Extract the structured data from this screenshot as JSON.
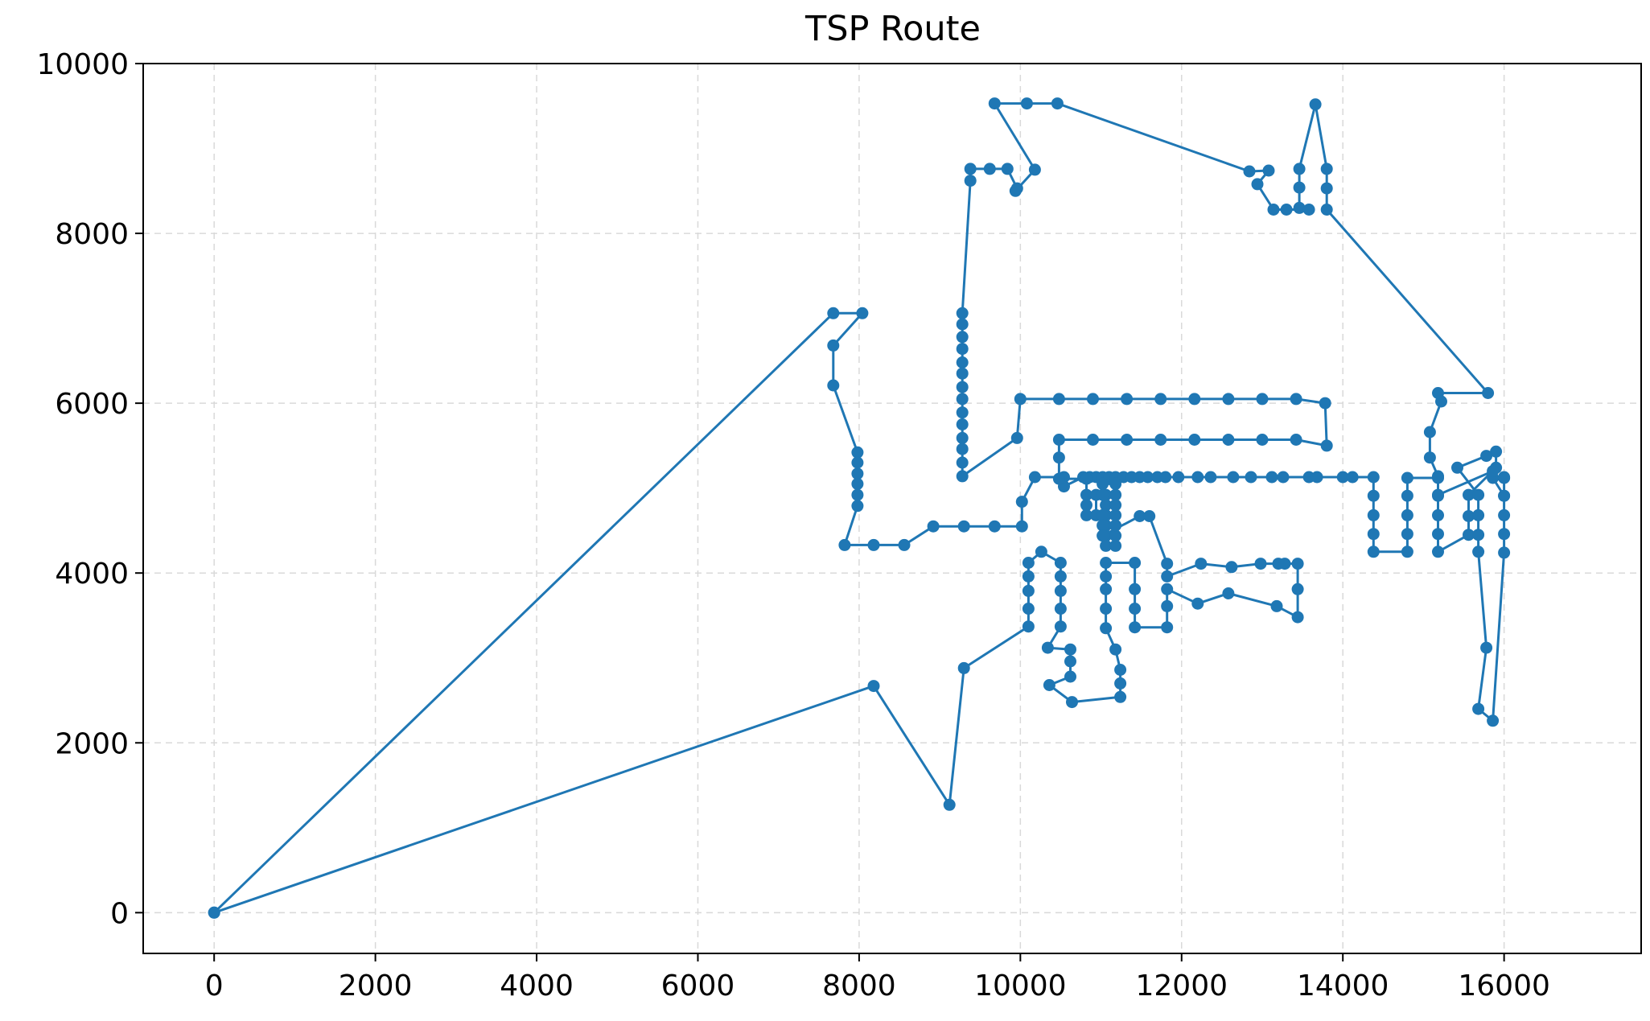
{
  "chart_data": {
    "type": "line",
    "title": "TSP Route",
    "xlabel": "",
    "ylabel": "",
    "xlim": [
      -880,
      17700
    ],
    "ylim": [
      -480,
      10000
    ],
    "xticks": [
      0,
      2000,
      4000,
      6000,
      8000,
      10000,
      12000,
      14000,
      16000
    ],
    "yticks": [
      0,
      2000,
      4000,
      6000,
      8000,
      10000
    ],
    "grid": true,
    "markers": true,
    "colors": {
      "line": "#1f77b4",
      "grid": "#d9d9d9",
      "axis": "#000000"
    },
    "series": [
      {
        "points": [
          [
            0,
            0
          ],
          [
            7680,
            7060
          ],
          [
            8040,
            7060
          ],
          [
            7680,
            6680
          ],
          [
            7680,
            6210
          ],
          [
            7980,
            5420
          ],
          [
            7980,
            5300
          ],
          [
            7980,
            5170
          ],
          [
            7980,
            5050
          ],
          [
            7980,
            4920
          ],
          [
            7980,
            4790
          ],
          [
            7820,
            4330
          ],
          [
            8180,
            4330
          ],
          [
            8560,
            4330
          ],
          [
            8920,
            4550
          ],
          [
            9300,
            4550
          ],
          [
            9680,
            4550
          ],
          [
            10020,
            4550
          ],
          [
            10020,
            4840
          ],
          [
            10180,
            5130
          ],
          [
            10540,
            5130
          ],
          [
            10540,
            5020
          ],
          [
            10780,
            5130
          ],
          [
            10860,
            5130
          ],
          [
            10940,
            5130
          ],
          [
            11020,
            5130
          ],
          [
            11100,
            5130
          ],
          [
            11180,
            5130
          ],
          [
            11280,
            5130
          ],
          [
            11380,
            5130
          ],
          [
            11480,
            5130
          ],
          [
            11580,
            5130
          ],
          [
            11700,
            5130
          ],
          [
            11800,
            5130
          ],
          [
            11960,
            5130
          ],
          [
            12200,
            5130
          ],
          [
            12360,
            5130
          ],
          [
            12640,
            5130
          ],
          [
            12860,
            5130
          ],
          [
            13120,
            5130
          ],
          [
            13260,
            5130
          ],
          [
            13580,
            5130
          ],
          [
            13680,
            5130
          ],
          [
            14000,
            5130
          ],
          [
            14120,
            5130
          ],
          [
            14380,
            5130
          ],
          [
            14380,
            4910
          ],
          [
            14380,
            4680
          ],
          [
            14380,
            4460
          ],
          [
            14380,
            4250
          ],
          [
            14800,
            4250
          ],
          [
            14800,
            4460
          ],
          [
            14800,
            4680
          ],
          [
            14800,
            4910
          ],
          [
            14800,
            5120
          ],
          [
            15180,
            5120
          ],
          [
            15180,
            4910
          ],
          [
            15180,
            4680
          ],
          [
            15180,
            4460
          ],
          [
            15180,
            4250
          ],
          [
            15560,
            4450
          ],
          [
            15560,
            4670
          ],
          [
            15560,
            4920
          ],
          [
            15900,
            5240
          ],
          [
            15900,
            5430
          ],
          [
            15780,
            5380
          ],
          [
            15420,
            5240
          ],
          [
            15680,
            4920
          ],
          [
            15680,
            4680
          ],
          [
            15680,
            4450
          ],
          [
            15680,
            4250
          ],
          [
            15780,
            3120
          ],
          [
            15680,
            2400
          ],
          [
            15860,
            2260
          ],
          [
            16000,
            4240
          ],
          [
            16000,
            4460
          ],
          [
            16000,
            4680
          ],
          [
            16000,
            4910
          ],
          [
            16000,
            5120
          ],
          [
            16000,
            5130
          ],
          [
            16000,
            5120
          ],
          [
            16000,
            4910
          ],
          [
            15860,
            5120
          ],
          [
            15860,
            5200
          ],
          [
            15180,
            4920
          ],
          [
            15180,
            5140
          ],
          [
            15080,
            5360
          ],
          [
            15080,
            5660
          ],
          [
            15220,
            6020
          ],
          [
            15180,
            6120
          ],
          [
            15800,
            6120
          ],
          [
            13800,
            8280
          ],
          [
            13800,
            8530
          ],
          [
            13800,
            8760
          ],
          [
            13660,
            9520
          ],
          [
            13460,
            8760
          ],
          [
            13460,
            8540
          ],
          [
            13460,
            8300
          ],
          [
            13580,
            8280
          ],
          [
            13300,
            8280
          ],
          [
            13140,
            8280
          ],
          [
            12940,
            8580
          ],
          [
            13080,
            8740
          ],
          [
            12840,
            8730
          ],
          [
            10460,
            9530
          ],
          [
            10080,
            9530
          ],
          [
            9680,
            9530
          ],
          [
            10180,
            8750
          ],
          [
            9940,
            8500
          ],
          [
            9960,
            8530
          ],
          [
            9840,
            8760
          ],
          [
            9620,
            8760
          ],
          [
            9380,
            8760
          ],
          [
            9380,
            8620
          ],
          [
            9280,
            7060
          ],
          [
            9280,
            6930
          ],
          [
            9280,
            6780
          ],
          [
            9280,
            6640
          ],
          [
            9280,
            6480
          ],
          [
            9280,
            6350
          ],
          [
            9280,
            6190
          ],
          [
            9280,
            6050
          ],
          [
            9280,
            5890
          ],
          [
            9280,
            5750
          ],
          [
            9280,
            5590
          ],
          [
            9280,
            5460
          ],
          [
            9280,
            5300
          ],
          [
            9280,
            5140
          ],
          [
            9960,
            5590
          ],
          [
            10000,
            6050
          ],
          [
            10480,
            6050
          ],
          [
            10900,
            6050
          ],
          [
            11320,
            6050
          ],
          [
            11740,
            6050
          ],
          [
            12160,
            6050
          ],
          [
            12580,
            6050
          ],
          [
            13000,
            6050
          ],
          [
            13420,
            6050
          ],
          [
            13780,
            6000
          ],
          [
            13800,
            5500
          ],
          [
            13420,
            5570
          ],
          [
            13000,
            5570
          ],
          [
            12580,
            5570
          ],
          [
            12160,
            5570
          ],
          [
            11740,
            5570
          ],
          [
            11320,
            5570
          ],
          [
            10900,
            5570
          ],
          [
            10480,
            5570
          ],
          [
            10480,
            5360
          ],
          [
            10480,
            5110
          ],
          [
            10820,
            5110
          ],
          [
            10820,
            4920
          ],
          [
            10820,
            4800
          ],
          [
            10820,
            4680
          ],
          [
            10940,
            4680
          ],
          [
            10940,
            4920
          ],
          [
            11060,
            4920
          ],
          [
            11060,
            4800
          ],
          [
            11060,
            4680
          ],
          [
            11060,
            4560
          ],
          [
            11060,
            4440
          ],
          [
            11060,
            4320
          ],
          [
            11180,
            4320
          ],
          [
            11180,
            4440
          ],
          [
            11180,
            4560
          ],
          [
            11180,
            4680
          ],
          [
            11180,
            4800
          ],
          [
            11180,
            4920
          ],
          [
            11180,
            5050
          ],
          [
            11020,
            5050
          ],
          [
            11020,
            4920
          ],
          [
            11020,
            4680
          ],
          [
            11020,
            4560
          ],
          [
            11020,
            4440
          ],
          [
            11480,
            4670
          ],
          [
            11600,
            4670
          ],
          [
            11820,
            4110
          ],
          [
            11820,
            3960
          ],
          [
            12240,
            4110
          ],
          [
            12620,
            4070
          ],
          [
            12980,
            4110
          ],
          [
            13200,
            4110
          ],
          [
            13280,
            4110
          ],
          [
            13440,
            4110
          ],
          [
            13440,
            3810
          ],
          [
            13440,
            3480
          ],
          [
            13180,
            3610
          ],
          [
            12580,
            3760
          ],
          [
            12200,
            3640
          ],
          [
            11820,
            3810
          ],
          [
            11820,
            3610
          ],
          [
            11820,
            3360
          ],
          [
            11420,
            3360
          ],
          [
            11420,
            3580
          ],
          [
            11420,
            3810
          ],
          [
            11420,
            4120
          ],
          [
            11060,
            4120
          ],
          [
            11060,
            3960
          ],
          [
            11060,
            3810
          ],
          [
            11060,
            3580
          ],
          [
            11060,
            3350
          ],
          [
            11180,
            3100
          ],
          [
            11240,
            2860
          ],
          [
            11240,
            2700
          ],
          [
            11240,
            2540
          ],
          [
            10640,
            2480
          ],
          [
            10360,
            2680
          ],
          [
            10620,
            2780
          ],
          [
            10620,
            2960
          ],
          [
            10620,
            3100
          ],
          [
            10340,
            3120
          ],
          [
            10500,
            3370
          ],
          [
            10500,
            3580
          ],
          [
            10500,
            3790
          ],
          [
            10500,
            3960
          ],
          [
            10500,
            4120
          ],
          [
            10260,
            4250
          ],
          [
            10100,
            4120
          ],
          [
            10100,
            3960
          ],
          [
            10100,
            3790
          ],
          [
            10100,
            3580
          ],
          [
            10100,
            3370
          ],
          [
            9300,
            2880
          ],
          [
            9120,
            1270
          ],
          [
            8180,
            2670
          ],
          [
            0,
            0
          ]
        ]
      }
    ]
  }
}
